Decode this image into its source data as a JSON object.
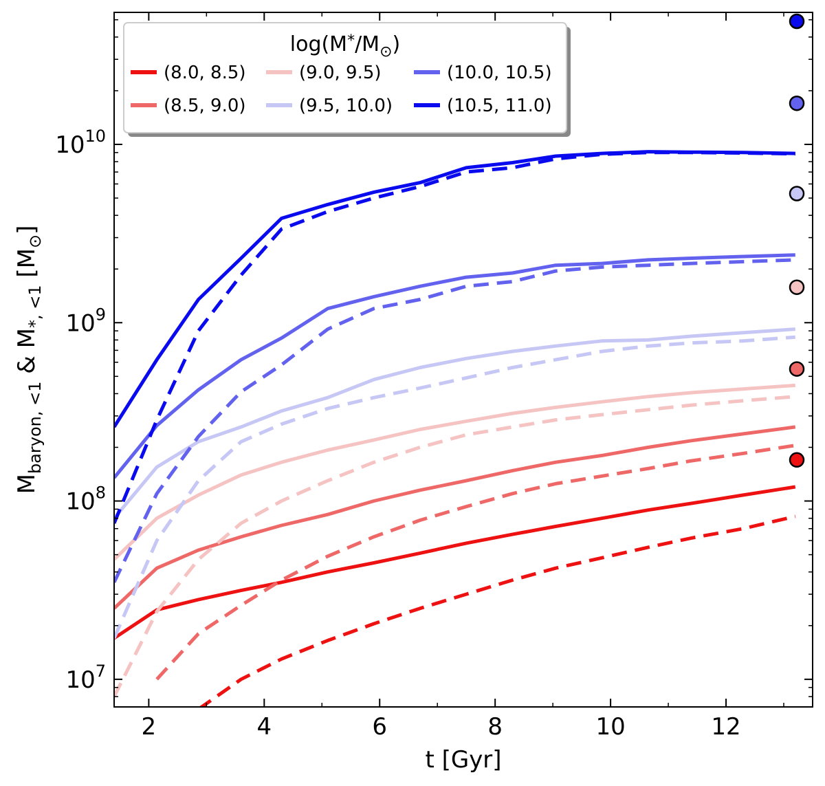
{
  "chart_data": {
    "type": "line",
    "xlabel": "t [Gyr]",
    "ylabel_main": "M",
    "ylabel_sub1": "baryon, <1",
    "ylabel_amp": " & M",
    "ylabel_sub2": "*, <1",
    "ylabel_unit": " [M",
    "ylabel_close": "]",
    "yscale": "log",
    "xlim": [
      1.4,
      13.5
    ],
    "ylim": [
      7000000.0,
      55000000000.0
    ],
    "x_ticks": [
      2,
      4,
      6,
      8,
      10,
      12
    ],
    "x_tick_labels": [
      "2",
      "4",
      "6",
      "8",
      "10",
      "12"
    ],
    "y_ticks": [
      10000000.0,
      100000000.0,
      1000000000.0,
      10000000000.0
    ],
    "y_tick_bases": [
      "10",
      "10",
      "10",
      "10"
    ],
    "y_tick_exps": [
      "7",
      "8",
      "9",
      "10"
    ],
    "legend": {
      "title": "log(M*/M⊙)",
      "title_main": "log(M",
      "title_star": "*",
      "title_mid": "/M",
      "title_end": ")",
      "placement": "top-left"
    },
    "x": [
      1.4,
      2.14,
      2.86,
      3.6,
      4.3,
      5.1,
      5.9,
      6.7,
      7.5,
      8.3,
      9.05,
      9.85,
      10.65,
      11.4,
      12.3,
      13.2
    ],
    "series": [
      {
        "name": "(8.0, 8.5)",
        "color": "#ee1111",
        "solid": [
          17000000.0,
          24500000.0,
          28000000.0,
          31500000.0,
          35000000.0,
          40000000.0,
          45000000.0,
          51000000.0,
          58000000.0,
          65000000.0,
          72000000.0,
          80000000.0,
          89000000.0,
          97000000.0,
          108000000.0,
          120000000.0
        ],
        "dashed": [
          null,
          null,
          6800000.0,
          10000000.0,
          13000000.0,
          16500000.0,
          20500000.0,
          25000000.0,
          30000000.0,
          36000000.0,
          42000000.0,
          48000000.0,
          55000000.0,
          62000000.0,
          70000000.0,
          82000000.0
        ],
        "endpoint": 170000000.0
      },
      {
        "name": "(8.5, 9.0)",
        "color": "#ef6868",
        "solid": [
          25000000.0,
          42000000.0,
          53000000.0,
          63000000.0,
          73000000.0,
          84000000.0,
          100000000.0,
          115000000.0,
          130000000.0,
          148000000.0,
          165000000.0,
          180000000.0,
          200000000.0,
          218000000.0,
          238000000.0,
          260000000.0
        ],
        "dashed": [
          null,
          10000000.0,
          18000000.0,
          26000000.0,
          36000000.0,
          49000000.0,
          63000000.0,
          78000000.0,
          93000000.0,
          110000000.0,
          125000000.0,
          138000000.0,
          152000000.0,
          168000000.0,
          185000000.0,
          205000000.0
        ],
        "endpoint": 550000000.0
      },
      {
        "name": "(9.0, 9.5)",
        "color": "#f6c3c3",
        "solid": [
          47000000.0,
          80000000.0,
          108000000.0,
          140000000.0,
          165000000.0,
          193000000.0,
          220000000.0,
          252000000.0,
          280000000.0,
          310000000.0,
          335000000.0,
          360000000.0,
          385000000.0,
          405000000.0,
          425000000.0,
          445000000.0
        ],
        "dashed": [
          8000000.0,
          24000000.0,
          47000000.0,
          75000000.0,
          100000000.0,
          130000000.0,
          165000000.0,
          200000000.0,
          235000000.0,
          260000000.0,
          285000000.0,
          305000000.0,
          325000000.0,
          345000000.0,
          365000000.0,
          385000000.0
        ],
        "endpoint": 1580000000.0
      },
      {
        "name": "(9.5, 10.0)",
        "color": "#c7c7f6",
        "solid": [
          80000000.0,
          155000000.0,
          215000000.0,
          260000000.0,
          320000000.0,
          380000000.0,
          480000000.0,
          560000000.0,
          630000000.0,
          690000000.0,
          740000000.0,
          790000000.0,
          800000000.0,
          840000000.0,
          880000000.0,
          920000000.0
        ],
        "dashed": [
          17000000.0,
          60000000.0,
          130000000.0,
          215000000.0,
          270000000.0,
          330000000.0,
          380000000.0,
          430000000.0,
          490000000.0,
          560000000.0,
          620000000.0,
          690000000.0,
          740000000.0,
          770000000.0,
          790000000.0,
          830000000.0
        ],
        "endpoint": 5300000000.0
      },
      {
        "name": "(10.0, 10.5)",
        "color": "#6262ef",
        "solid": [
          135000000.0,
          265000000.0,
          420000000.0,
          620000000.0,
          820000000.0,
          1200000000.0,
          1400000000.0,
          1600000000.0,
          1800000000.0,
          1900000000.0,
          2100000000.0,
          2150000000.0,
          2250000000.0,
          2300000000.0,
          2350000000.0,
          2400000000.0
        ],
        "dashed": [
          35000000.0,
          110000000.0,
          230000000.0,
          410000000.0,
          580000000.0,
          920000000.0,
          1200000000.0,
          1350000000.0,
          1600000000.0,
          1700000000.0,
          1950000000.0,
          2050000000.0,
          2100000000.0,
          2150000000.0,
          2200000000.0,
          2250000000.0
        ],
        "endpoint": 17000000000.0
      },
      {
        "name": "(10.5, 11.0)",
        "color": "#0a0aee",
        "solid": [
          260000000.0,
          620000000.0,
          1350000000.0,
          2300000000.0,
          3850000000.0,
          4600000000.0,
          5400000000.0,
          6100000000.0,
          7400000000.0,
          7900000000.0,
          8600000000.0,
          8900000000.0,
          9100000000.0,
          9050000000.0,
          9000000000.0,
          8900000000.0
        ],
        "dashed": [
          75000000.0,
          285000000.0,
          900000000.0,
          1850000000.0,
          3350000000.0,
          4200000000.0,
          5000000000.0,
          5800000000.0,
          7000000000.0,
          7400000000.0,
          8300000000.0,
          8800000000.0,
          9000000000.0,
          9000000000.0,
          8950000000.0,
          8850000000.0
        ],
        "endpoint": 49000000000.0
      }
    ]
  }
}
